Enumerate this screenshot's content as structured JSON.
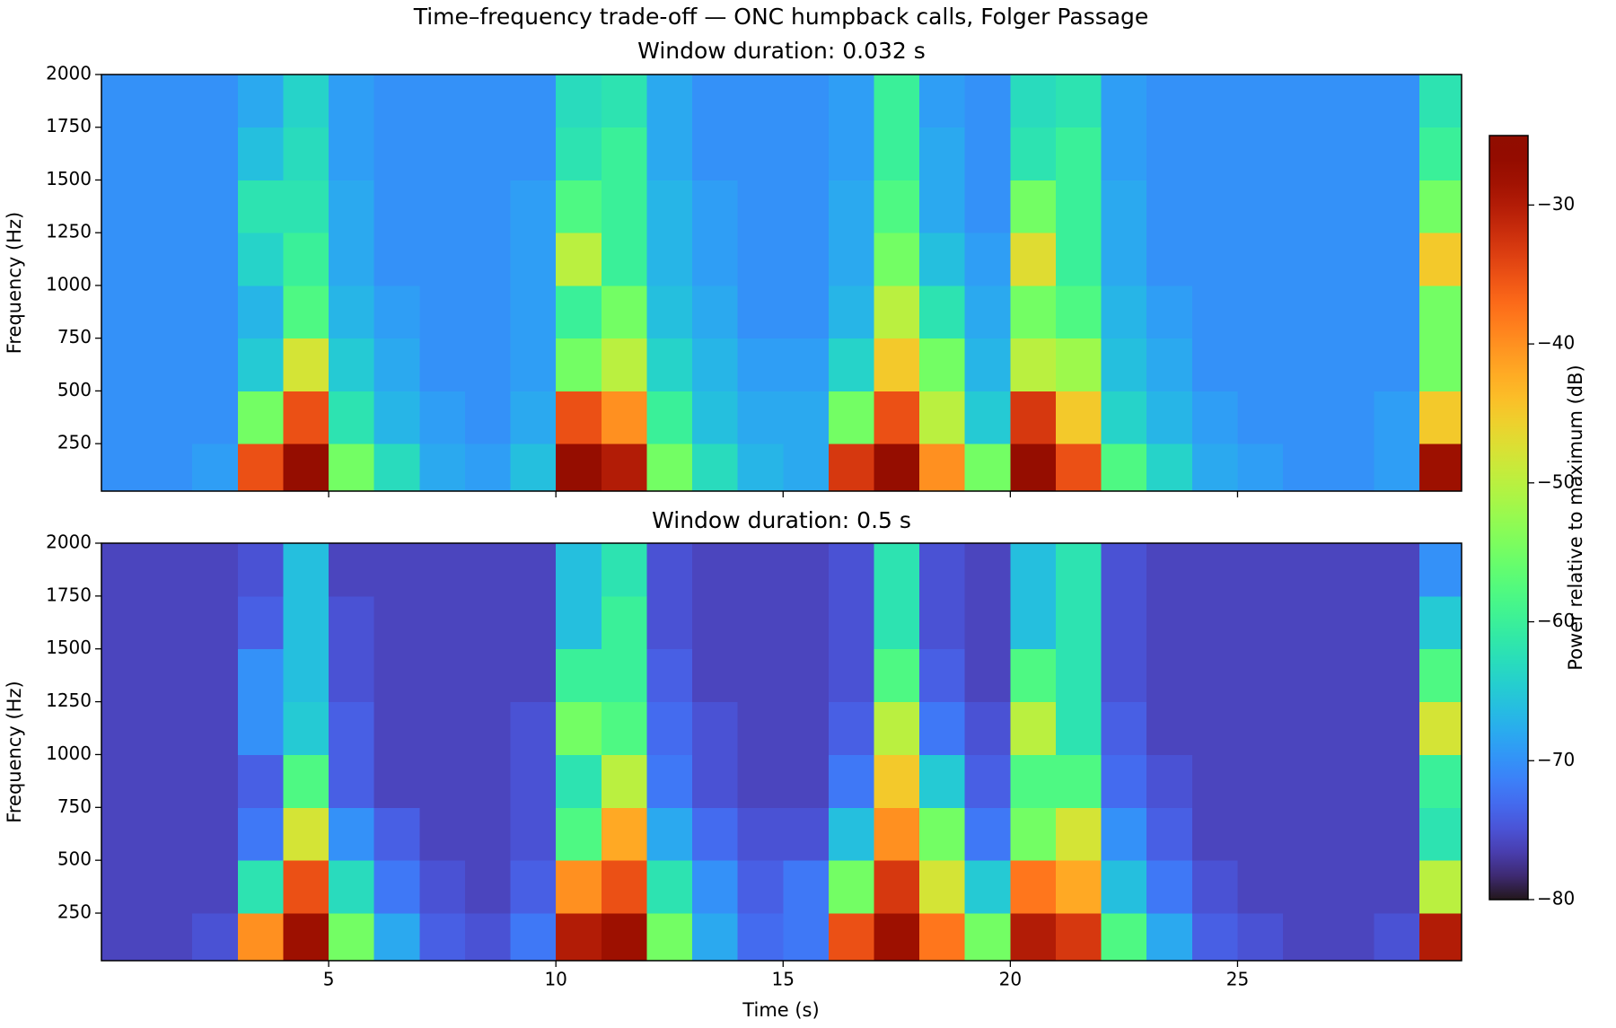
{
  "chart_data": {
    "type": "spectrogram",
    "title": "Time–frequency trade-off — ONC humpback calls, Folger Passage",
    "xlabel": "Time (s)",
    "ylabel": "Frequency (Hz)",
    "xlim": [
      0,
      29.93
    ],
    "xticks": [
      5,
      10,
      15,
      20,
      25
    ],
    "ylim": [
      25,
      2000
    ],
    "yticks": [
      250,
      500,
      750,
      1000,
      1250,
      1500,
      1750,
      2000
    ],
    "colormap": "turbo",
    "clim": [
      -80,
      -25
    ],
    "cticks": [
      {
        "value": -30,
        "label": "−30"
      },
      {
        "value": -40,
        "label": "−40"
      },
      {
        "value": -50,
        "label": "−50"
      },
      {
        "value": -60,
        "label": "−60"
      },
      {
        "value": -70,
        "label": "−70"
      },
      {
        "value": -80,
        "label": "−80"
      }
    ],
    "colorbar_label": "Power relative to maximum (dB)",
    "panels": [
      {
        "title": "Window duration: 0.032 s",
        "x": [
          0.5,
          1.5,
          2.5,
          3.5,
          4.5,
          5.5,
          6.5,
          7.5,
          8.5,
          9.5,
          10.5,
          11.5,
          12.5,
          13.5,
          14.5,
          15.5,
          16.5,
          17.5,
          18.5,
          19.5,
          20.5,
          21.5,
          22.5,
          23.5,
          24.5,
          25.5,
          26.5,
          27.5,
          28.5,
          29.5
        ],
        "y": [
          125,
          375,
          625,
          875,
          1125,
          1375,
          1625,
          1875
        ],
        "values": [
          [
            -70,
            -70,
            -69,
            -35,
            -27,
            -55,
            -63,
            -68,
            -69,
            -66,
            -27,
            -30,
            -55,
            -63,
            -67,
            -68,
            -33,
            -27,
            -40,
            -55,
            -27,
            -35,
            -58,
            -64,
            -68,
            -69,
            -70,
            -70,
            -69,
            -28
          ],
          [
            -70,
            -70,
            -70,
            -55,
            -35,
            -62,
            -67,
            -69,
            -70,
            -68,
            -35,
            -40,
            -60,
            -66,
            -68,
            -68,
            -55,
            -35,
            -50,
            -65,
            -33,
            -45,
            -64,
            -67,
            -69,
            -70,
            -70,
            -70,
            -69,
            -45
          ],
          [
            -70,
            -70,
            -70,
            -65,
            -48,
            -65,
            -68,
            -70,
            -70,
            -69,
            -55,
            -50,
            -64,
            -67,
            -69,
            -69,
            -64,
            -45,
            -55,
            -67,
            -50,
            -52,
            -66,
            -68,
            -70,
            -70,
            -70,
            -70,
            -70,
            -55
          ],
          [
            -70,
            -70,
            -70,
            -67,
            -58,
            -67,
            -69,
            -70,
            -70,
            -69,
            -60,
            -55,
            -66,
            -68,
            -70,
            -70,
            -67,
            -50,
            -62,
            -68,
            -55,
            -58,
            -67,
            -69,
            -70,
            -70,
            -70,
            -70,
            -70,
            -55
          ],
          [
            -70,
            -70,
            -70,
            -64,
            -60,
            -68,
            -70,
            -70,
            -70,
            -69,
            -50,
            -60,
            -67,
            -69,
            -70,
            -70,
            -68,
            -55,
            -66,
            -69,
            -47,
            -60,
            -68,
            -70,
            -70,
            -70,
            -70,
            -70,
            -70,
            -45
          ],
          [
            -70,
            -70,
            -70,
            -62,
            -62,
            -68,
            -70,
            -70,
            -70,
            -69,
            -58,
            -60,
            -67,
            -69,
            -70,
            -70,
            -68,
            -58,
            -68,
            -70,
            -55,
            -60,
            -68,
            -70,
            -70,
            -70,
            -70,
            -70,
            -70,
            -55
          ],
          [
            -70,
            -70,
            -70,
            -66,
            -63,
            -69,
            -70,
            -70,
            -70,
            -70,
            -62,
            -60,
            -68,
            -70,
            -70,
            -70,
            -69,
            -60,
            -68,
            -70,
            -62,
            -60,
            -69,
            -70,
            -70,
            -70,
            -70,
            -70,
            -70,
            -60
          ],
          [
            -70,
            -70,
            -70,
            -68,
            -64,
            -69,
            -70,
            -70,
            -70,
            -70,
            -63,
            -62,
            -68,
            -70,
            -70,
            -70,
            -69,
            -60,
            -69,
            -70,
            -63,
            -62,
            -69,
            -70,
            -70,
            -70,
            -70,
            -70,
            -70,
            -62
          ]
        ]
      },
      {
        "title": "Window duration: 0.5 s",
        "x": [
          0.5,
          1.5,
          2.5,
          3.5,
          4.5,
          5.5,
          6.5,
          7.5,
          8.5,
          9.5,
          10.5,
          11.5,
          12.5,
          13.5,
          14.5,
          15.5,
          16.5,
          17.5,
          18.5,
          19.5,
          20.5,
          21.5,
          22.5,
          23.5,
          24.5,
          25.5,
          26.5,
          27.5,
          28.5,
          29.5
        ],
        "y": [
          125,
          375,
          625,
          875,
          1125,
          1375,
          1625,
          1875
        ],
        "values": [
          [
            -76,
            -76,
            -75,
            -40,
            -28,
            -55,
            -68,
            -74,
            -75,
            -72,
            -30,
            -28,
            -55,
            -68,
            -73,
            -72,
            -35,
            -28,
            -38,
            -55,
            -30,
            -33,
            -58,
            -68,
            -74,
            -75,
            -76,
            -76,
            -75,
            -30
          ],
          [
            -76,
            -76,
            -76,
            -62,
            -35,
            -63,
            -72,
            -75,
            -76,
            -74,
            -40,
            -35,
            -62,
            -70,
            -74,
            -72,
            -55,
            -33,
            -48,
            -65,
            -38,
            -42,
            -66,
            -72,
            -75,
            -76,
            -76,
            -76,
            -76,
            -50
          ],
          [
            -76,
            -76,
            -76,
            -72,
            -48,
            -70,
            -74,
            -76,
            -76,
            -75,
            -58,
            -42,
            -68,
            -73,
            -75,
            -75,
            -66,
            -40,
            -55,
            -72,
            -55,
            -48,
            -70,
            -74,
            -76,
            -76,
            -76,
            -76,
            -76,
            -62
          ],
          [
            -76,
            -76,
            -76,
            -74,
            -58,
            -74,
            -76,
            -76,
            -76,
            -75,
            -62,
            -50,
            -72,
            -75,
            -76,
            -76,
            -72,
            -45,
            -65,
            -74,
            -58,
            -58,
            -73,
            -75,
            -76,
            -76,
            -76,
            -76,
            -76,
            -60
          ],
          [
            -76,
            -76,
            -76,
            -70,
            -65,
            -74,
            -76,
            -76,
            -76,
            -75,
            -55,
            -58,
            -73,
            -75,
            -76,
            -76,
            -74,
            -50,
            -72,
            -75,
            -50,
            -62,
            -74,
            -76,
            -76,
            -76,
            -76,
            -76,
            -76,
            -48
          ],
          [
            -76,
            -76,
            -76,
            -70,
            -66,
            -75,
            -76,
            -76,
            -76,
            -76,
            -60,
            -60,
            -74,
            -76,
            -76,
            -76,
            -75,
            -58,
            -74,
            -76,
            -58,
            -62,
            -75,
            -76,
            -76,
            -76,
            -76,
            -76,
            -76,
            -58
          ],
          [
            -76,
            -76,
            -76,
            -74,
            -66,
            -75,
            -76,
            -76,
            -76,
            -76,
            -66,
            -60,
            -75,
            -76,
            -76,
            -76,
            -75,
            -62,
            -75,
            -76,
            -66,
            -62,
            -75,
            -76,
            -76,
            -76,
            -76,
            -76,
            -76,
            -65
          ],
          [
            -76,
            -76,
            -76,
            -75,
            -66,
            -76,
            -76,
            -76,
            -76,
            -76,
            -66,
            -62,
            -75,
            -76,
            -76,
            -76,
            -75,
            -62,
            -75,
            -76,
            -66,
            -62,
            -75,
            -76,
            -76,
            -76,
            -76,
            -76,
            -76,
            -70
          ]
        ]
      }
    ]
  }
}
